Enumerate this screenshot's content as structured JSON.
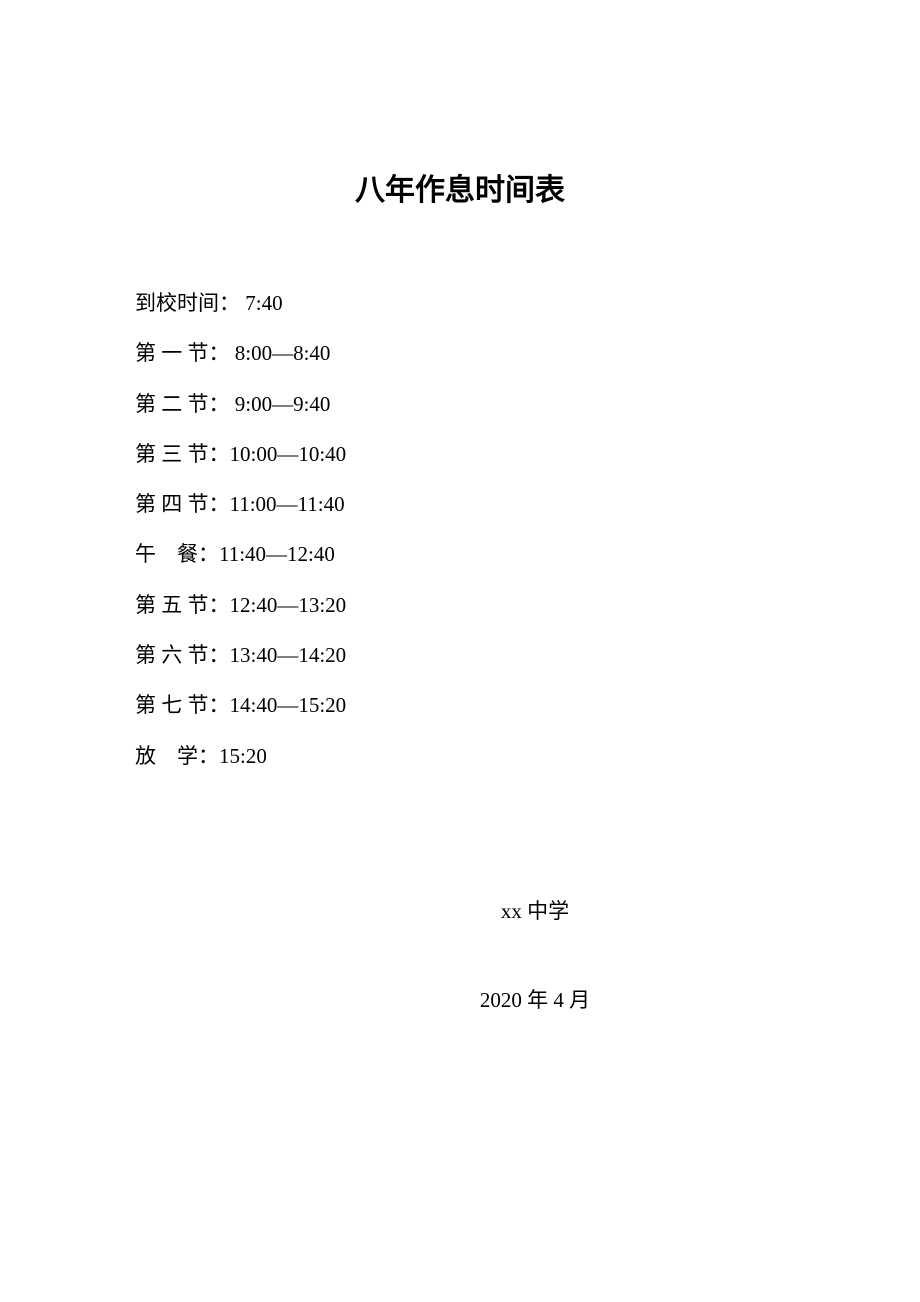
{
  "document": {
    "title": "八年作息时间表",
    "background_color": "#ffffff",
    "text_color": "#000000",
    "title_fontsize": 30,
    "body_fontsize": 21,
    "schedule": [
      {
        "label": "到校时间：",
        "time": " 7:40"
      },
      {
        "label": "第 一 节：",
        "time": " 8:00—8:40"
      },
      {
        "label": "第 二 节：",
        "time": " 9:00—9:40"
      },
      {
        "label": "第 三 节：",
        "time": "10:00—10:40"
      },
      {
        "label": "第 四 节：",
        "time": "11:00—11:40"
      },
      {
        "label": "午    餐：",
        "time": "11:40—12:40"
      },
      {
        "label": "第 五 节：",
        "time": "12:40—13:20"
      },
      {
        "label": "第 六 节：",
        "time": "13:40—14:20"
      },
      {
        "label": "第 七 节：",
        "time": "14:40—15:20"
      },
      {
        "label": "放    学：",
        "time": "15:20"
      }
    ],
    "footer": {
      "school_name": "xx 中学",
      "date": "2020 年 4 月"
    }
  }
}
